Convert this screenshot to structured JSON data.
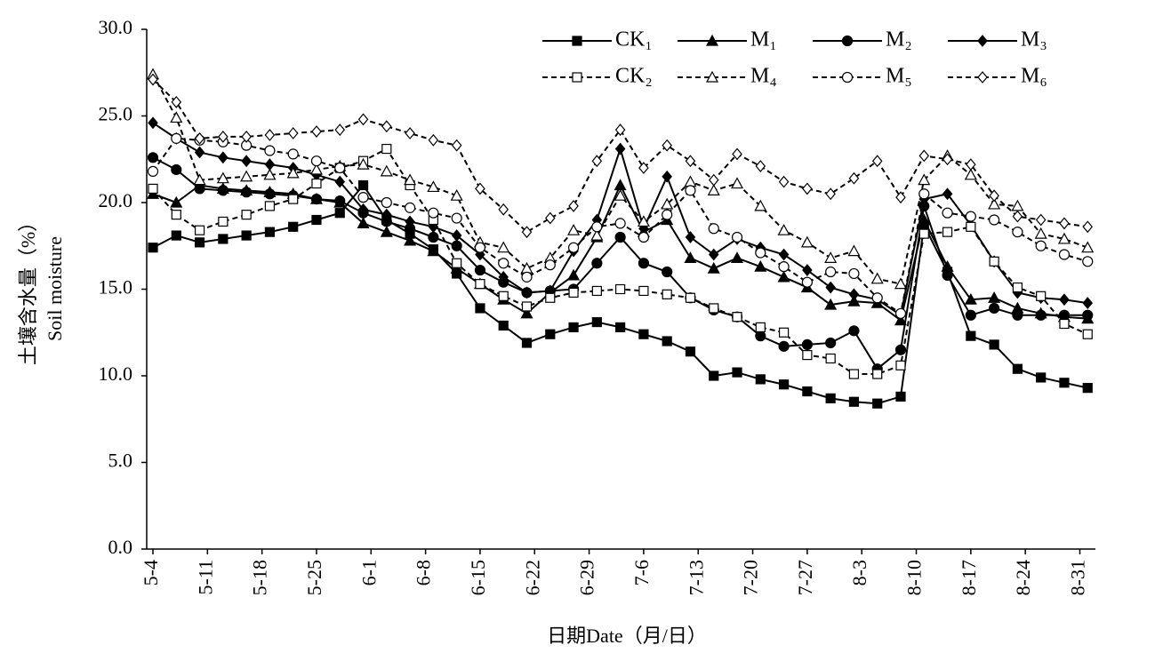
{
  "chart_data": {
    "type": "line",
    "x_label": "日期Date（月/日）",
    "y_label": [
      "土壤含水量（%）",
      "Soil moisture"
    ],
    "x": [
      0,
      3,
      6,
      9,
      12,
      15,
      18,
      21,
      24,
      27,
      30,
      33,
      36,
      39,
      42,
      45,
      48,
      51,
      54,
      57,
      60,
      63,
      66,
      69,
      72,
      75,
      78,
      81,
      84,
      87,
      90,
      93,
      96,
      99,
      102,
      105,
      108,
      111,
      114,
      117,
      120
    ],
    "xlim": [
      -0.8,
      121
    ],
    "xticks": [
      {
        "value": 0,
        "label": "5-4"
      },
      {
        "value": 7,
        "label": "5-11"
      },
      {
        "value": 14,
        "label": "5-18"
      },
      {
        "value": 21,
        "label": "5-25"
      },
      {
        "value": 28,
        "label": "6-1"
      },
      {
        "value": 35,
        "label": "6-8"
      },
      {
        "value": 42,
        "label": "6-15"
      },
      {
        "value": 49,
        "label": "6-22"
      },
      {
        "value": 56,
        "label": "6-29"
      },
      {
        "value": 63,
        "label": "7-6"
      },
      {
        "value": 70,
        "label": "7-13"
      },
      {
        "value": 77,
        "label": "7-20"
      },
      {
        "value": 84,
        "label": "7-27"
      },
      {
        "value": 91,
        "label": "8-3"
      },
      {
        "value": 98,
        "label": "8-10"
      },
      {
        "value": 105,
        "label": "8-17"
      },
      {
        "value": 112,
        "label": "8-24"
      },
      {
        "value": 119,
        "label": "8-31"
      }
    ],
    "ylim": [
      0,
      30
    ],
    "yticks": [
      {
        "value": 0,
        "label": "0.0"
      },
      {
        "value": 5,
        "label": "5.0"
      },
      {
        "value": 10,
        "label": "10.0"
      },
      {
        "value": 15,
        "label": "15.0"
      },
      {
        "value": 20,
        "label": "20.0"
      },
      {
        "value": 25,
        "label": "25.0"
      },
      {
        "value": 30,
        "label": "30.0"
      }
    ],
    "legend": "top-right",
    "series": [
      {
        "name": "CK₁",
        "color": "#000000",
        "marker": "square",
        "filled": true,
        "dashed": false,
        "values": [
          17.4,
          18.1,
          17.7,
          17.9,
          18.1,
          18.3,
          18.6,
          19.0,
          19.4,
          21.0,
          19.0,
          18.2,
          17.3,
          15.9,
          13.9,
          12.9,
          11.9,
          12.4,
          12.8,
          13.1,
          12.8,
          12.4,
          12.0,
          11.4,
          10.0,
          10.2,
          9.8,
          9.5,
          9.1,
          8.7,
          8.5,
          8.4,
          8.8,
          18.7,
          16.0,
          12.3,
          11.8,
          10.4,
          9.9,
          9.6,
          9.3
        ]
      },
      {
        "name": "M₁",
        "color": "#000000",
        "marker": "triangle",
        "filled": true,
        "dashed": false,
        "values": [
          20.5,
          20.0,
          21.0,
          20.8,
          20.7,
          20.6,
          20.5,
          20.2,
          20.0,
          18.8,
          18.3,
          17.8,
          17.2,
          16.2,
          15.3,
          14.4,
          13.6,
          14.8,
          15.8,
          18.0,
          21.0,
          18.3,
          19.0,
          16.8,
          16.2,
          16.8,
          16.3,
          15.7,
          15.1,
          14.1,
          14.3,
          14.2,
          13.2,
          19.0,
          16.3,
          14.4,
          14.5,
          13.9,
          13.6,
          13.4,
          13.3
        ]
      },
      {
        "name": "M₂",
        "color": "#000000",
        "marker": "circle",
        "filled": true,
        "dashed": false,
        "values": [
          22.6,
          21.9,
          20.8,
          20.7,
          20.6,
          20.5,
          20.4,
          20.2,
          20.1,
          19.4,
          18.9,
          18.5,
          18.0,
          17.5,
          16.1,
          15.4,
          14.8,
          14.9,
          15.0,
          16.5,
          18.0,
          16.5,
          16.0,
          14.5,
          13.8,
          13.4,
          12.3,
          11.7,
          11.8,
          11.9,
          12.6,
          10.4,
          11.5,
          19.8,
          15.8,
          13.5,
          13.9,
          13.5,
          13.5,
          13.5,
          13.5
        ]
      },
      {
        "name": "M₃",
        "color": "#000000",
        "marker": "diamond",
        "filled": true,
        "dashed": false,
        "values": [
          24.6,
          23.7,
          22.9,
          22.6,
          22.4,
          22.2,
          22.0,
          21.6,
          21.2,
          19.6,
          19.3,
          18.9,
          18.6,
          18.1,
          17.0,
          15.7,
          14.8,
          14.9,
          17.2,
          19.0,
          23.1,
          18.5,
          21.5,
          18.0,
          17.0,
          17.9,
          17.4,
          17.0,
          16.1,
          15.1,
          14.7,
          14.4,
          13.5,
          20.2,
          20.5,
          18.7,
          16.6,
          14.8,
          14.5,
          14.4,
          14.2
        ]
      },
      {
        "name": "CK₂",
        "color": "#000000",
        "marker": "square",
        "filled": false,
        "dashed": true,
        "values": [
          20.8,
          19.3,
          18.4,
          18.9,
          19.3,
          19.8,
          20.2,
          21.1,
          22.0,
          22.4,
          23.1,
          21.0,
          19.0,
          16.5,
          15.3,
          14.6,
          14.0,
          14.5,
          14.8,
          14.9,
          15.0,
          14.9,
          14.7,
          14.5,
          13.9,
          13.4,
          12.8,
          12.5,
          11.2,
          11.0,
          10.1,
          10.1,
          10.6,
          18.2,
          18.3,
          18.6,
          16.6,
          15.1,
          14.6,
          13.0,
          12.4
        ]
      },
      {
        "name": "M₄",
        "color": "#000000",
        "marker": "triangle",
        "filled": false,
        "dashed": true,
        "values": [
          27.4,
          24.9,
          21.3,
          21.4,
          21.5,
          21.6,
          21.7,
          21.9,
          22.1,
          22.2,
          21.8,
          21.3,
          20.9,
          20.4,
          17.7,
          17.4,
          16.2,
          16.8,
          18.4,
          18.1,
          20.4,
          18.9,
          19.9,
          21.2,
          20.7,
          21.1,
          19.8,
          18.4,
          17.7,
          16.8,
          17.2,
          15.6,
          15.3,
          21.3,
          22.7,
          21.6,
          19.9,
          19.8,
          18.2,
          17.9,
          17.4
        ]
      },
      {
        "name": "M₅",
        "color": "#000000",
        "marker": "circle",
        "filled": false,
        "dashed": true,
        "values": [
          21.8,
          23.7,
          23.6,
          23.5,
          23.3,
          23.0,
          22.8,
          22.4,
          22.0,
          20.3,
          20.0,
          19.7,
          19.4,
          19.1,
          17.4,
          16.5,
          15.7,
          16.4,
          17.4,
          18.6,
          18.8,
          18.0,
          19.3,
          20.7,
          18.5,
          18.0,
          17.1,
          16.3,
          15.4,
          16.0,
          15.9,
          14.5,
          13.6,
          20.5,
          19.4,
          19.2,
          19.0,
          18.3,
          17.5,
          17.0,
          16.6
        ]
      },
      {
        "name": "M₆",
        "color": "#000000",
        "marker": "diamond",
        "filled": false,
        "dashed": true,
        "values": [
          27.1,
          25.8,
          23.7,
          23.8,
          23.8,
          23.9,
          24.0,
          24.1,
          24.2,
          24.8,
          24.4,
          24.0,
          23.6,
          23.3,
          20.8,
          19.6,
          18.3,
          19.1,
          19.8,
          22.4,
          24.2,
          22.0,
          23.3,
          22.4,
          21.3,
          22.8,
          22.1,
          21.2,
          20.8,
          20.5,
          21.4,
          22.4,
          20.3,
          22.7,
          22.5,
          22.2,
          20.4,
          19.2,
          19.0,
          18.8,
          18.6
        ]
      }
    ]
  }
}
